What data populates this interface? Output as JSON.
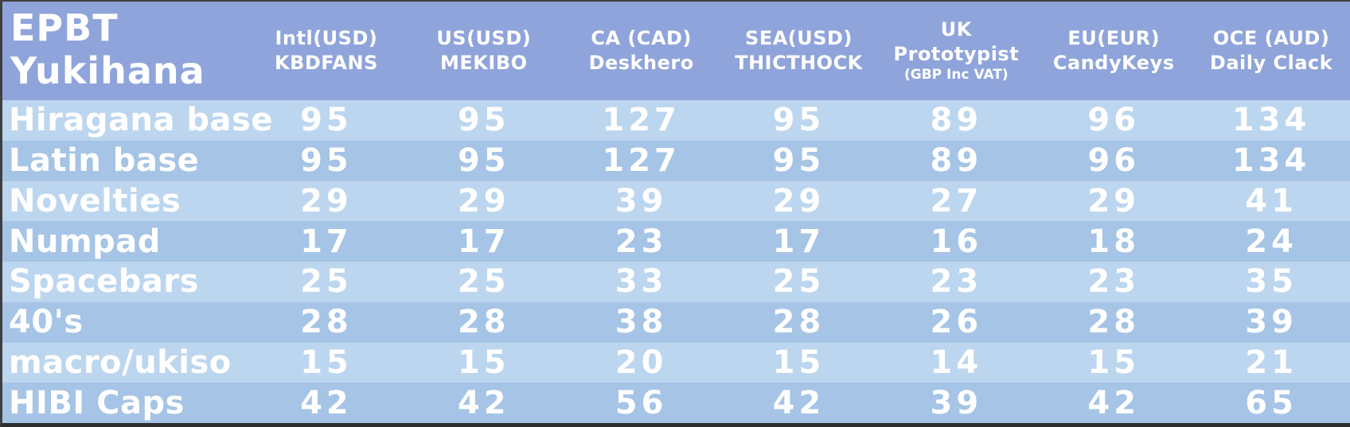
{
  "title": {
    "line1": "EPBT",
    "line2": "Yukihana"
  },
  "colors": {
    "background": "#8FA4DB",
    "row_light": "#BDD6EF",
    "row_medium": "#A5C4E6",
    "text": "#FFFFFF",
    "edge_dark": "#3F3F3F"
  },
  "chart_data": {
    "type": "table",
    "title": "EPBT Yukihana",
    "columns": [
      {
        "region": "Intl(USD)",
        "vendor": "KBDFANS",
        "note": ""
      },
      {
        "region": "US(USD)",
        "vendor": "MEKIBO",
        "note": ""
      },
      {
        "region": "CA (CAD)",
        "vendor": "Deskhero",
        "note": ""
      },
      {
        "region": "SEA(USD)",
        "vendor": "THICTHOCK",
        "note": ""
      },
      {
        "region": "UK",
        "vendor": "Prototypist",
        "note": "(GBP Inc VAT)"
      },
      {
        "region": "EU(EUR)",
        "vendor": "CandyKeys",
        "note": ""
      },
      {
        "region": "OCE (AUD)",
        "vendor": "Daily Clack",
        "note": ""
      }
    ],
    "rows": [
      {
        "label": "Hiragana base",
        "values": [
          95,
          95,
          127,
          95,
          89,
          96,
          134
        ]
      },
      {
        "label": "Latin base",
        "values": [
          95,
          95,
          127,
          95,
          89,
          96,
          134
        ]
      },
      {
        "label": "Novelties",
        "values": [
          29,
          29,
          39,
          29,
          27,
          29,
          41
        ]
      },
      {
        "label": "Numpad",
        "values": [
          17,
          17,
          23,
          17,
          16,
          18,
          24
        ]
      },
      {
        "label": "Spacebars",
        "values": [
          25,
          25,
          33,
          25,
          23,
          23,
          35
        ]
      },
      {
        "label": "40's",
        "values": [
          28,
          28,
          38,
          28,
          26,
          28,
          39
        ]
      },
      {
        "label": "macro/ukiso",
        "values": [
          15,
          15,
          20,
          15,
          14,
          15,
          21
        ]
      },
      {
        "label": "HIBI Caps",
        "values": [
          42,
          42,
          56,
          42,
          39,
          42,
          65
        ]
      }
    ]
  }
}
